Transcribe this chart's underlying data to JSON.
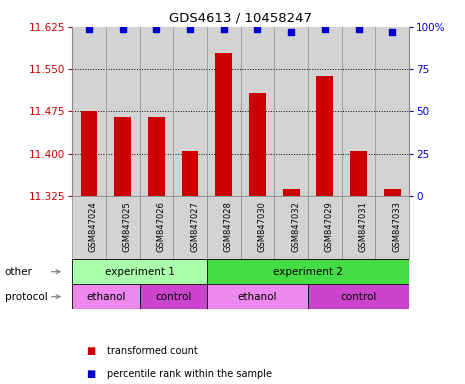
{
  "title": "GDS4613 / 10458247",
  "samples": [
    "GSM847024",
    "GSM847025",
    "GSM847026",
    "GSM847027",
    "GSM847028",
    "GSM847030",
    "GSM847032",
    "GSM847029",
    "GSM847031",
    "GSM847033"
  ],
  "bar_values": [
    11.475,
    11.465,
    11.465,
    11.405,
    11.578,
    11.508,
    11.337,
    11.537,
    11.405,
    11.337
  ],
  "bar_base": 11.325,
  "percentile_values": [
    99,
    99,
    99,
    99,
    99,
    99,
    97,
    99,
    99,
    97
  ],
  "ylim_left": [
    11.325,
    11.625
  ],
  "ylim_right": [
    0,
    100
  ],
  "yticks_left": [
    11.325,
    11.4,
    11.475,
    11.55,
    11.625
  ],
  "yticks_right": [
    0,
    25,
    50,
    75,
    100
  ],
  "bar_color": "#cc0000",
  "dot_color": "#0000cc",
  "col_bg": "#d3d3d3",
  "col_border": "#888888",
  "dotted_gridlines": [
    11.4,
    11.475,
    11.55
  ],
  "other_row": [
    {
      "label": "experiment 1",
      "span": [
        0,
        4
      ],
      "color": "#aaffaa"
    },
    {
      "label": "experiment 2",
      "span": [
        4,
        10
      ],
      "color": "#44dd44"
    }
  ],
  "protocol_row": [
    {
      "label": "ethanol",
      "span": [
        0,
        2
      ],
      "color": "#ee88ee"
    },
    {
      "label": "control",
      "span": [
        2,
        4
      ],
      "color": "#cc44cc"
    },
    {
      "label": "ethanol",
      "span": [
        4,
        7
      ],
      "color": "#ee88ee"
    },
    {
      "label": "control",
      "span": [
        7,
        10
      ],
      "color": "#cc44cc"
    }
  ],
  "legend": [
    {
      "label": "transformed count",
      "color": "#cc0000"
    },
    {
      "label": "percentile rank within the sample",
      "color": "#0000cc"
    }
  ],
  "other_label": "other",
  "protocol_label": "protocol"
}
